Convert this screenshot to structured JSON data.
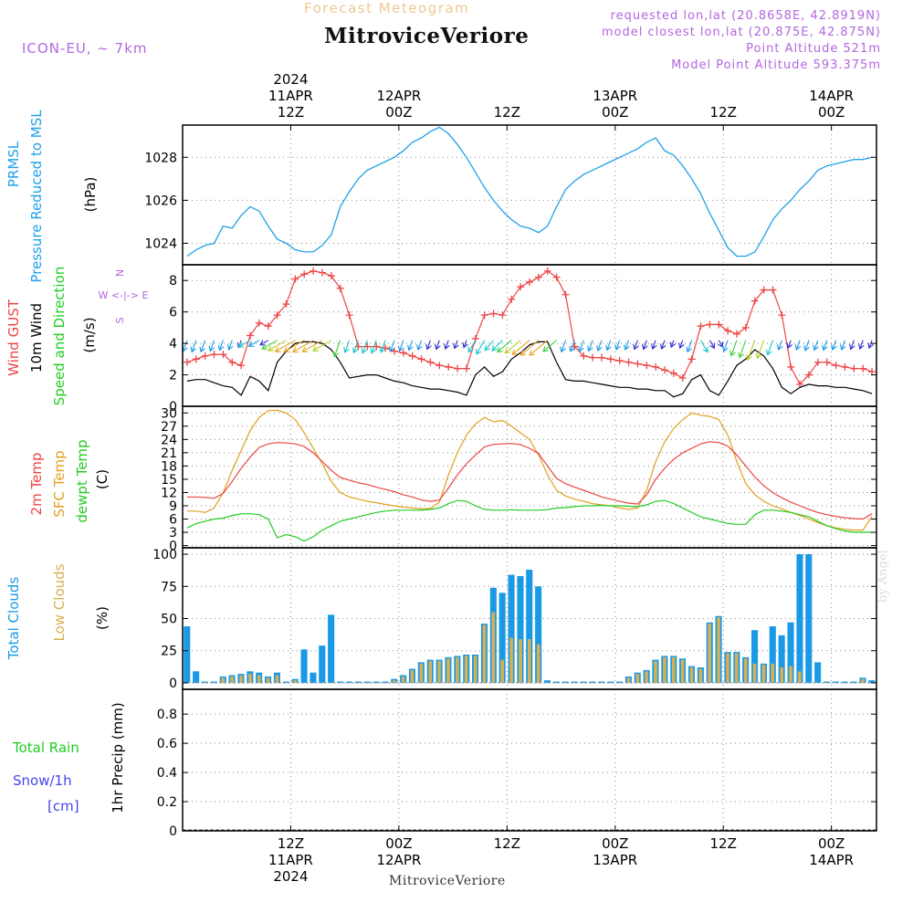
{
  "header": {
    "faint_title": "Forecast Meteogram",
    "station": "MitroviceVeriore",
    "model": "ICON-EU, ~ 7km",
    "requested": "requested lon,lat (20.8658E, 42.8919N)",
    "closest": "model closest lon,lat (20.875E, 42.875N)",
    "point_alt": "Point Altitude 521m",
    "model_alt": "Model Point Altitude 593.375m",
    "footer_station": "MitroviceVeriore",
    "credit": "by Angel"
  },
  "colors": {
    "pressure": "#1fa0e8",
    "gust": "#ee4444",
    "wind": "#000000",
    "temp": "#ee4444",
    "sfc": "#e0a020",
    "dewpt": "#22cc22",
    "total_clouds": "#1a9ae6",
    "low_clouds": "#d8b050",
    "rain": "#22cc22",
    "snow": "#4444ee"
  },
  "time_axis": {
    "top_labels": [
      {
        "t": 12,
        "lines": [
          "2024",
          "11APR",
          "12Z"
        ]
      },
      {
        "t": 24,
        "lines": [
          "12APR",
          "00Z"
        ]
      },
      {
        "t": 36,
        "lines": [
          "12Z"
        ]
      },
      {
        "t": 48,
        "lines": [
          "13APR",
          "00Z"
        ]
      },
      {
        "t": 60,
        "lines": [
          "12Z"
        ]
      },
      {
        "t": 72,
        "lines": [
          "14APR",
          "00Z"
        ]
      }
    ],
    "bottom_labels": [
      {
        "t": 12,
        "lines": [
          "12Z",
          "11APR",
          "2024"
        ]
      },
      {
        "t": 24,
        "lines": [
          "00Z",
          "12APR"
        ]
      },
      {
        "t": 36,
        "lines": [
          "12Z"
        ]
      },
      {
        "t": 48,
        "lines": [
          "00Z",
          "13APR"
        ]
      },
      {
        "t": 60,
        "lines": [
          "12Z"
        ]
      },
      {
        "t": 72,
        "lines": [
          "00Z",
          "14APR"
        ]
      }
    ]
  },
  "chart_data": [
    {
      "type": "line",
      "panel": "pressure",
      "ylabels": [
        "PRMSL",
        "Pressure Reduced to MSL",
        "(hPa)"
      ],
      "ylim": [
        1023,
        1029.5
      ],
      "yticks": [
        1024,
        1026,
        1028
      ],
      "series": [
        {
          "name": "PRMSL",
          "x": [
            0.5,
            1.5,
            2.5,
            3.5,
            4.5,
            5.5,
            6.5,
            7.5,
            8.5,
            9.5,
            10.5,
            11.5,
            12.5,
            13.5,
            14.5,
            15.5,
            16.5,
            17.5,
            18.5,
            19.5,
            20.5,
            21.5,
            22.5,
            23.5,
            24.5,
            25.5,
            26.5,
            27.5,
            28.5,
            29.5,
            30.5,
            31.5,
            32.5,
            33.5,
            34.5,
            35.5,
            36.5,
            37.5,
            38.5,
            39.5,
            40.5,
            41.5,
            42.5,
            43.5,
            44.5,
            45.5,
            46.5,
            47.5,
            48.5,
            49.5,
            50.5,
            51.5,
            52.5,
            53.5,
            54.5,
            55.5,
            56.5,
            57.5,
            58.5,
            59.5,
            60.5,
            61.5,
            62.5,
            63.5,
            64.5,
            65.5,
            66.5,
            67.5,
            68.5,
            69.5,
            70.5,
            71.5,
            72.5,
            73.5,
            74.5,
            75.5,
            76.5
          ],
          "values": [
            1023.4,
            1023.7,
            1023.9,
            1024.0,
            1024.8,
            1024.7,
            1025.3,
            1025.7,
            1025.5,
            1024.8,
            1024.2,
            1024.0,
            1023.7,
            1023.6,
            1023.6,
            1023.9,
            1024.4,
            1025.7,
            1026.4,
            1027.0,
            1027.4,
            1027.6,
            1027.8,
            1028.0,
            1028.3,
            1028.7,
            1028.9,
            1029.2,
            1029.4,
            1029.1,
            1028.6,
            1028.0,
            1027.3,
            1026.6,
            1026.0,
            1025.5,
            1025.1,
            1024.8,
            1024.7,
            1024.5,
            1024.8,
            1025.7,
            1026.5,
            1026.9,
            1027.2,
            1027.4,
            1027.6,
            1027.8,
            1028.0,
            1028.2,
            1028.4,
            1028.7,
            1028.9,
            1028.3,
            1028.1,
            1027.6,
            1027.0,
            1026.3,
            1025.4,
            1024.6,
            1023.8,
            1023.4,
            1023.4,
            1023.6,
            1024.3,
            1025.1,
            1025.6,
            1026.0,
            1026.5,
            1026.9,
            1027.4,
            1027.6,
            1027.7,
            1027.8,
            1027.9,
            1027.9,
            1028.0
          ]
        }
      ]
    },
    {
      "type": "line",
      "panel": "wind",
      "ylabels": [
        "Wind GUST",
        "10m Wind",
        "Speed and Direction",
        "(m/s)"
      ],
      "compass": [
        "N",
        "W <-|-> E",
        "S"
      ],
      "ylim": [
        0,
        9
      ],
      "yticks": [
        0,
        2,
        4,
        6,
        8
      ],
      "gust": {
        "name": "Wind GUST",
        "values": [
          2.8,
          3.0,
          3.2,
          3.3,
          3.3,
          2.8,
          2.6,
          4.5,
          5.3,
          5.1,
          5.8,
          6.5,
          8.1,
          8.4,
          8.6,
          8.5,
          8.3,
          7.5,
          5.8,
          3.8,
          3.8,
          3.8,
          3.7,
          3.5,
          3.4,
          3.2,
          3.0,
          2.8,
          2.6,
          2.5,
          2.4,
          2.4,
          4.3,
          5.8,
          5.9,
          5.8,
          6.8,
          7.6,
          7.9,
          8.2,
          8.6,
          8.2,
          7.1,
          3.8,
          3.2,
          3.1,
          3.1,
          3.0,
          2.9,
          2.8,
          2.7,
          2.6,
          2.5,
          2.3,
          2.1,
          1.8,
          3.0,
          5.1,
          5.2,
          5.2,
          4.8,
          4.6,
          5.0,
          6.7,
          7.4,
          7.4,
          5.8,
          2.5,
          1.4,
          2.0,
          2.8,
          2.8,
          2.6,
          2.5,
          2.4,
          2.4,
          2.2
        ]
      },
      "wind": {
        "name": "10m Wind",
        "values": [
          1.6,
          1.7,
          1.7,
          1.5,
          1.3,
          1.2,
          0.7,
          1.9,
          1.6,
          1.0,
          2.8,
          3.5,
          4.0,
          4.1,
          4.1,
          4.0,
          3.6,
          2.8,
          1.8,
          1.9,
          2.0,
          2.0,
          1.8,
          1.6,
          1.5,
          1.3,
          1.2,
          1.1,
          1.1,
          1.0,
          0.9,
          0.7,
          2.0,
          2.5,
          1.9,
          2.2,
          3.0,
          3.4,
          3.9,
          4.1,
          4.1,
          2.8,
          1.7,
          1.6,
          1.6,
          1.5,
          1.4,
          1.3,
          1.2,
          1.2,
          1.1,
          1.1,
          1.0,
          1.0,
          0.6,
          0.8,
          1.7,
          2.0,
          1.0,
          0.7,
          1.6,
          2.6,
          3.0,
          3.6,
          3.2,
          2.4,
          1.2,
          0.8,
          1.2,
          1.4,
          1.3,
          1.3,
          1.2,
          1.2,
          1.1,
          1.0,
          0.8
        ]
      },
      "wind_dir_deg": [
        20,
        20,
        20,
        20,
        20,
        20,
        20,
        60,
        60,
        60,
        60,
        60,
        60,
        60,
        60,
        60,
        60,
        20,
        20,
        20,
        20,
        20,
        20,
        20,
        20,
        20,
        20,
        20,
        20,
        20,
        20,
        20,
        30,
        30,
        40,
        45,
        50,
        50,
        50,
        50,
        50,
        50,
        20,
        20,
        20,
        20,
        20,
        20,
        20,
        20,
        20,
        20,
        20,
        20,
        20,
        20,
        20,
        330,
        330,
        330,
        20,
        20,
        20,
        20,
        20,
        20,
        20,
        20,
        20,
        20,
        20,
        20,
        20,
        20,
        20,
        20,
        20
      ]
    },
    {
      "type": "line",
      "panel": "temperature",
      "ylabels": [
        "2m Temp",
        "SFC Temp",
        "dewpt Temp",
        "(C)"
      ],
      "ylim": [
        -0.5,
        31.5
      ],
      "yticks": [
        0,
        3,
        6,
        9,
        12,
        15,
        18,
        21,
        24,
        27,
        30
      ],
      "series": [
        {
          "name": "2m Temp",
          "values": [
            11.0,
            11.0,
            10.9,
            10.7,
            11.8,
            14.5,
            17.5,
            20.0,
            22.2,
            23.0,
            23.3,
            23.2,
            23.0,
            22.4,
            21.0,
            19.0,
            17.0,
            15.4,
            14.8,
            14.2,
            13.8,
            13.2,
            12.7,
            12.2,
            11.5,
            11.0,
            10.3,
            10.0,
            10.3,
            13.0,
            16.0,
            18.5,
            20.5,
            22.3,
            22.9,
            23.0,
            23.1,
            22.8,
            22.0,
            20.8,
            18.0,
            15.2,
            14.0,
            13.2,
            12.5,
            11.8,
            11.0,
            10.5,
            10.0,
            9.6,
            9.4,
            11.5,
            15.0,
            17.5,
            19.5,
            21.0,
            22.0,
            23.0,
            23.5,
            23.3,
            22.5,
            20.5,
            18.0,
            15.5,
            13.5,
            12.0,
            10.8,
            9.8,
            9.0,
            8.2,
            7.5,
            7.0,
            6.6,
            6.3,
            6.1,
            6.0,
            7.2
          ]
        },
        {
          "name": "SFC Temp",
          "values": [
            7.8,
            7.8,
            7.5,
            8.5,
            12.0,
            17.0,
            21.5,
            26.0,
            29.0,
            30.5,
            30.6,
            30.0,
            28.5,
            25.5,
            22.0,
            18.5,
            14.5,
            12.0,
            11.0,
            10.5,
            10.0,
            9.7,
            9.3,
            9.0,
            8.7,
            8.5,
            8.3,
            8.4,
            9.8,
            16.0,
            21.0,
            25.0,
            27.5,
            29.0,
            28.0,
            28.3,
            27.0,
            25.5,
            24.0,
            20.5,
            16.0,
            12.5,
            11.2,
            10.5,
            10.0,
            9.5,
            9.2,
            9.0,
            8.5,
            8.2,
            8.5,
            12.5,
            19.0,
            23.5,
            26.5,
            28.5,
            30.0,
            29.5,
            29.2,
            28.5,
            25.0,
            19.0,
            14.0,
            11.5,
            10.0,
            9.0,
            8.3,
            7.5,
            6.8,
            6.0,
            5.2,
            4.5,
            4.0,
            3.7,
            3.5,
            3.5,
            6.6
          ]
        },
        {
          "name": "dewpt Temp",
          "values": [
            4.0,
            5.0,
            5.5,
            6.0,
            6.2,
            6.8,
            7.2,
            7.2,
            7.0,
            6.0,
            1.8,
            2.5,
            2.0,
            1.0,
            2.0,
            3.5,
            4.5,
            5.5,
            6.0,
            6.5,
            7.0,
            7.5,
            7.8,
            8.0,
            8.0,
            8.0,
            8.0,
            8.2,
            8.5,
            9.5,
            10.2,
            10.0,
            9.0,
            8.2,
            8.0,
            8.0,
            8.1,
            8.0,
            8.0,
            8.0,
            8.1,
            8.5,
            8.6,
            8.8,
            9.0,
            9.0,
            9.1,
            9.0,
            9.0,
            8.9,
            8.8,
            9.2,
            10.0,
            10.2,
            9.5,
            8.5,
            7.5,
            6.5,
            6.0,
            5.5,
            5.0,
            4.8,
            4.8,
            7.0,
            8.0,
            8.0,
            7.8,
            7.5,
            7.0,
            6.5,
            5.5,
            4.5,
            3.8,
            3.3,
            3.0,
            3.0,
            3.0
          ]
        }
      ]
    },
    {
      "type": "bar",
      "panel": "clouds",
      "ylabels": [
        "Total Clouds",
        "Low Clouds",
        "(%)"
      ],
      "ylim": [
        -5,
        105
      ],
      "yticks": [
        0,
        25,
        50,
        75,
        100
      ],
      "series": [
        {
          "name": "Total Clouds",
          "values": [
            44,
            9,
            1,
            1,
            5,
            6,
            7,
            9,
            8,
            5,
            8,
            1,
            3,
            26,
            8,
            29,
            53,
            1,
            1,
            1,
            1,
            1,
            1,
            3,
            6,
            11,
            16,
            18,
            18,
            20,
            21,
            22,
            22,
            46,
            74,
            70,
            84,
            83,
            88,
            75,
            2,
            1,
            1,
            1,
            1,
            1,
            1,
            1,
            1,
            5,
            8,
            10,
            18,
            21,
            21,
            19,
            13,
            12,
            47,
            52,
            24,
            24,
            20,
            41,
            15,
            44,
            37,
            47,
            100,
            100,
            16,
            1,
            1,
            1,
            1,
            4,
            2
          ]
        },
        {
          "name": "Low Clouds",
          "values": [
            0,
            0,
            0,
            0,
            4,
            5,
            6,
            7,
            6,
            4,
            6,
            0,
            2,
            0,
            0,
            0,
            0,
            0,
            0,
            0,
            0,
            0,
            0,
            2,
            5,
            10,
            15,
            17,
            17,
            19,
            20,
            21,
            21,
            45,
            55,
            18,
            35,
            34,
            34,
            30,
            0,
            0,
            0,
            0,
            0,
            0,
            0,
            0,
            0,
            4,
            7,
            9,
            17,
            20,
            20,
            18,
            12,
            11,
            46,
            51,
            23,
            23,
            19,
            15,
            14,
            15,
            12,
            13,
            9,
            0,
            0,
            0,
            0,
            0,
            0,
            3,
            0
          ]
        }
      ]
    },
    {
      "type": "bar",
      "panel": "precip",
      "ylabels": [
        "Total  Rain",
        "Snow/1h",
        "[cm]",
        "1hr Precip (mm)"
      ],
      "ylim": [
        0,
        0.97
      ],
      "yticks": [
        0,
        0.2,
        0.4,
        0.6,
        0.8
      ],
      "series": [
        {
          "name": "Total Rain",
          "values": [
            0,
            0,
            0,
            0,
            0,
            0,
            0,
            0,
            0,
            0,
            0,
            0,
            0,
            0,
            0,
            0,
            0,
            0,
            0,
            0,
            0,
            0,
            0,
            0,
            0,
            0,
            0,
            0,
            0,
            0,
            0,
            0,
            0,
            0,
            0,
            0,
            0,
            0,
            0,
            0,
            0,
            0,
            0,
            0,
            0,
            0,
            0,
            0,
            0,
            0,
            0,
            0,
            0,
            0,
            0,
            0,
            0,
            0,
            0,
            0,
            0,
            0,
            0,
            0,
            0,
            0,
            0,
            0,
            0,
            0,
            0,
            0,
            0,
            0,
            0,
            0,
            0
          ]
        }
      ]
    }
  ]
}
